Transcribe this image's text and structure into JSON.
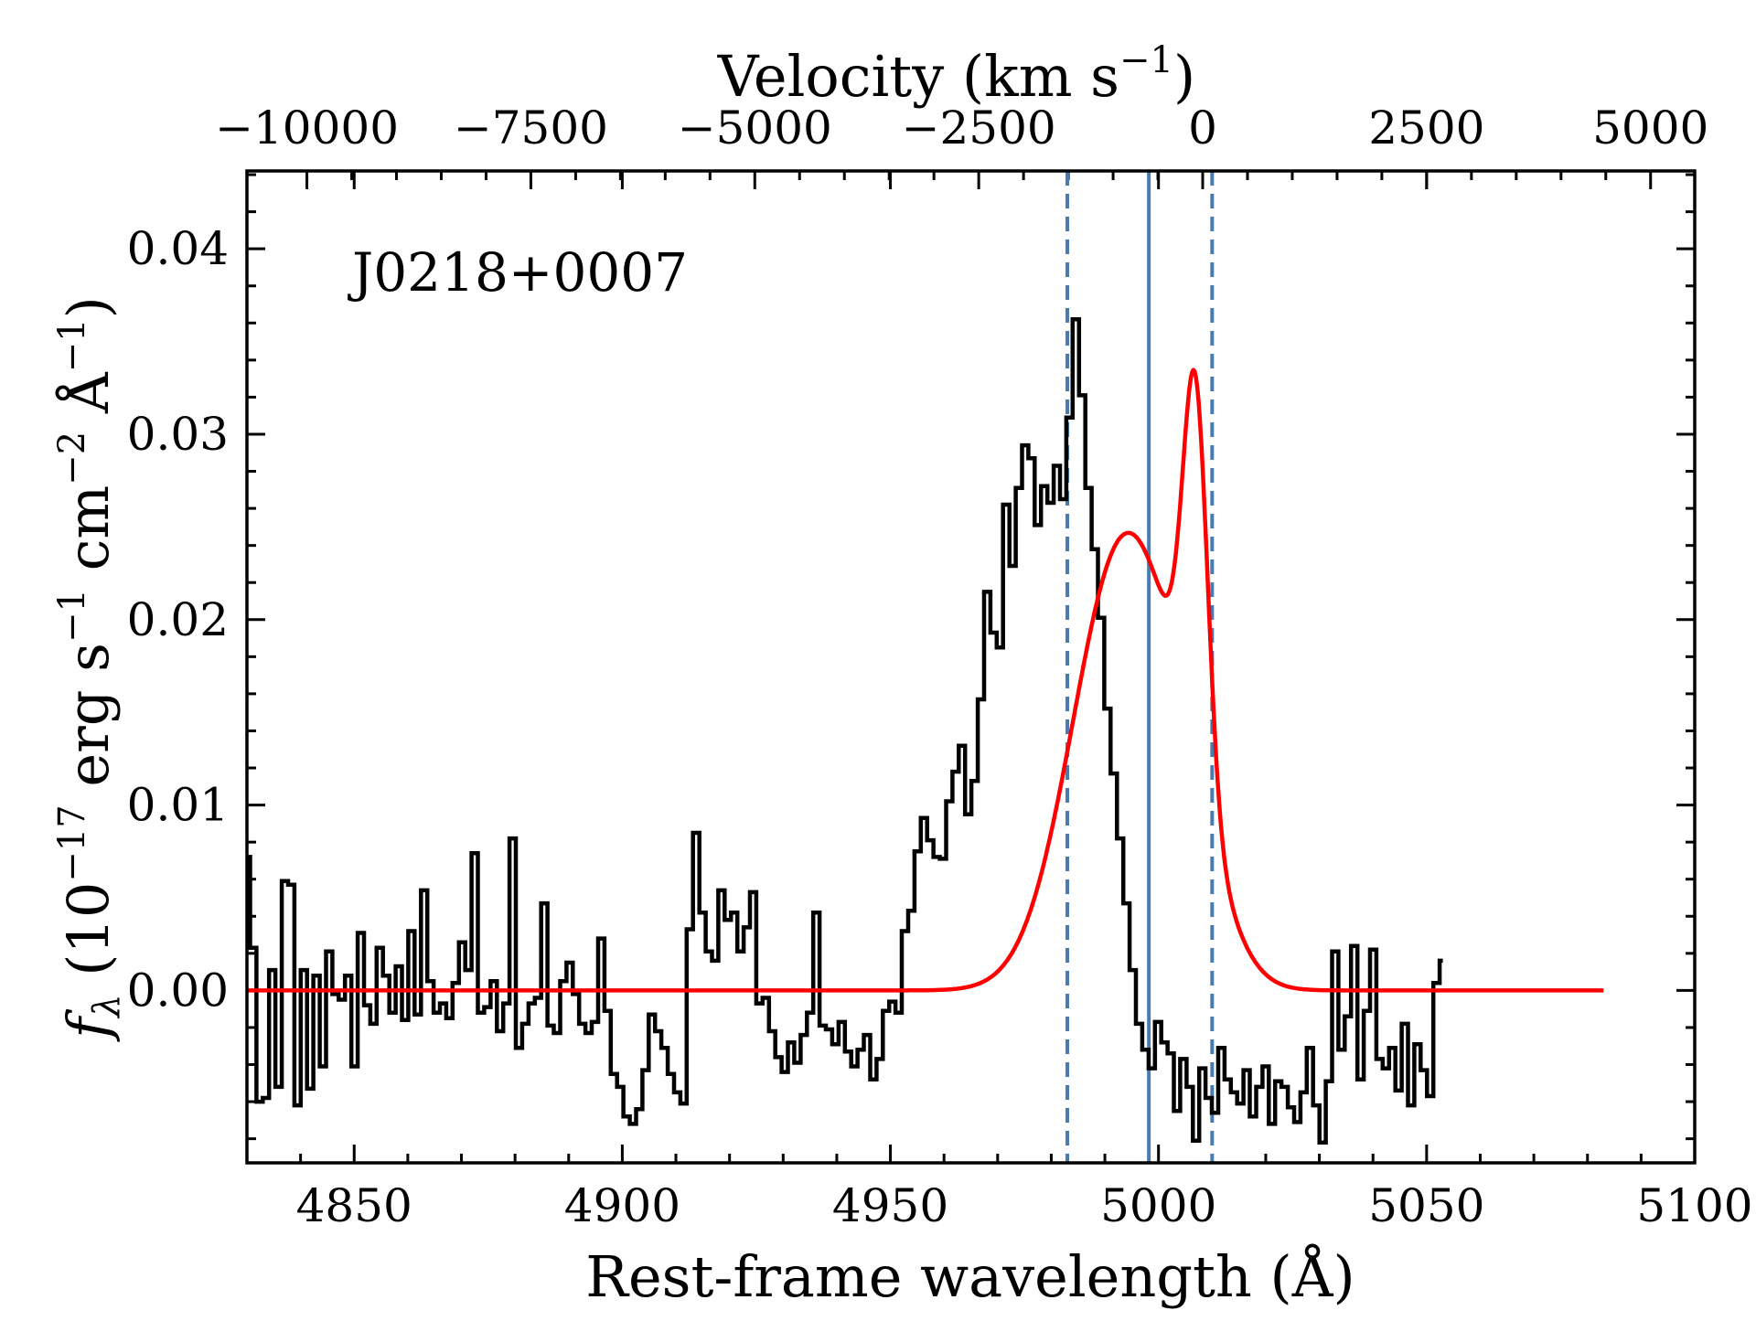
{
  "chart_data": {
    "type": "line",
    "annotation": "J0218+0007",
    "xlabel": "Rest-frame wavelength (Å)",
    "ylabel_parts": {
      "symbol": "f",
      "symbol_sub": "λ",
      "open": " (10",
      "exp1": "−17",
      "mid1": " erg s",
      "exp2": "−1",
      "mid2": " cm",
      "exp3": "−2",
      "mid3": " Å",
      "exp4": "−1",
      "close": ")"
    },
    "top_xlabel_parts": {
      "text": "Velocity (km s",
      "exp": "−1",
      "close": ")"
    },
    "xlim": [
      4830,
      5100
    ],
    "ylim": [
      -0.0093,
      0.0442
    ],
    "x_ticks": [
      4850,
      4900,
      4950,
      5000,
      5050,
      5100
    ],
    "x_tick_labels": [
      "4850",
      "4900",
      "4950",
      "5000",
      "5050",
      "5100"
    ],
    "y_ticks": [
      0.0,
      0.01,
      0.02,
      0.03,
      0.04
    ],
    "y_tick_labels": [
      "0.00",
      "0.01",
      "0.02",
      "0.03",
      "0.04"
    ],
    "top_axis": {
      "ref_wavelength": 5008.24,
      "ticks": [
        -10000,
        -7500,
        -5000,
        -2500,
        0,
        2500,
        5000
      ],
      "tick_labels": [
        "−10000",
        "−7500",
        "−5000",
        "−2500",
        "0",
        "2500",
        "5000"
      ]
    },
    "vlines": [
      {
        "x": 4998.2,
        "style": "solid",
        "color": "#4a7bb0"
      },
      {
        "x": 4983.0,
        "style": "dashed",
        "color": "#4a7bb0"
      },
      {
        "x": 5010.0,
        "style": "dashed",
        "color": "#4a7bb0"
      }
    ],
    "series": [
      {
        "name": "observed spectrum",
        "drawstyle": "steps-mid",
        "color": "#000000",
        "x_start": 4830.0,
        "x_step": 1.18,
        "values": [
          0.0072,
          0.0023,
          -0.006,
          -0.0058,
          0.0011,
          -0.0052,
          0.0059,
          0.0057,
          -0.0062,
          0.0011,
          -0.0053,
          0.0008,
          -0.0041,
          0.0021,
          -0.0002,
          -0.0005,
          0.0008,
          -0.0041,
          0.0031,
          -0.0008,
          -0.0018,
          0.0023,
          0.0008,
          -0.0012,
          0.0013,
          -0.0016,
          0.0032,
          -0.0013,
          0.0054,
          0.0005,
          -0.0012,
          -0.0007,
          -0.0015,
          0.0004,
          0.0026,
          0.0011,
          0.0074,
          -0.0012,
          -0.0009,
          0.0005,
          -0.0022,
          -0.0007,
          0.0082,
          -0.0031,
          -0.0018,
          -0.0007,
          -0.0004,
          0.0047,
          -0.0019,
          -0.0023,
          0.0005,
          0.0015,
          -0.0002,
          -0.0018,
          -0.0023,
          -0.0017,
          0.0028,
          -0.0011,
          -0.0045,
          -0.0052,
          -0.0068,
          -0.0072,
          -0.0064,
          -0.0043,
          -0.0013,
          -0.0022,
          -0.0031,
          -0.0045,
          -0.0055,
          -0.0061,
          0.0033,
          0.0085,
          0.0042,
          0.0021,
          0.0016,
          0.0054,
          0.0038,
          0.0042,
          0.0021,
          0.0034,
          0.0053,
          -0.0007,
          -0.0004,
          -0.0022,
          -0.0036,
          -0.0044,
          -0.0028,
          -0.0039,
          -0.0024,
          -0.0012,
          0.0042,
          -0.0019,
          -0.0021,
          -0.0029,
          -0.0017,
          -0.0033,
          -0.0041,
          -0.0032,
          -0.0024,
          -0.0048,
          -0.0037,
          -0.0011,
          -0.0006,
          -0.0012,
          0.0032,
          0.0043,
          0.0075,
          0.0093,
          0.0081,
          0.0072,
          0.0071,
          0.0102,
          0.0118,
          0.0132,
          0.0095,
          0.0113,
          0.0157,
          0.0215,
          0.0193,
          0.0185,
          0.0262,
          0.0229,
          0.0271,
          0.0294,
          0.0287,
          0.0251,
          0.0272,
          0.0263,
          0.0283,
          0.0265,
          0.0309,
          0.0362,
          0.0321,
          0.0271,
          0.0238,
          0.0201,
          0.0152,
          0.0117,
          0.0082,
          0.0047,
          0.0011,
          -0.0018,
          -0.0032,
          -0.0042,
          -0.0017,
          -0.0028,
          -0.0034,
          -0.0065,
          -0.0037,
          -0.0052,
          -0.0081,
          -0.0042,
          -0.0058,
          -0.0066,
          -0.0031,
          -0.0048,
          -0.0055,
          -0.0061,
          -0.0043,
          -0.0068,
          -0.0052,
          -0.0041,
          -0.0072,
          -0.0049,
          -0.0052,
          -0.0063,
          -0.0071,
          -0.0055,
          -0.0031,
          -0.0062,
          -0.0082,
          -0.0049,
          0.0021,
          -0.0032,
          -0.0014,
          0.0024,
          -0.0048,
          -0.0011,
          0.0022,
          -0.0037,
          -0.0042,
          -0.0031,
          -0.0054,
          -0.0018,
          -0.0062,
          -0.0029,
          -0.0043,
          -0.0057,
          0.0004,
          0.0016
        ]
      },
      {
        "name": "model fit",
        "drawstyle": "line",
        "color": "#ff0000",
        "x_range": [
          4830,
          5083
        ],
        "components": [
          {
            "center": 4993.0,
            "amplitude": 0.0232,
            "sigma": 9.2
          },
          {
            "center": 5006.9,
            "amplitude": 0.0205,
            "sigma": 2.3
          },
          {
            "center": 5005.0,
            "amplitude": 0.0055,
            "sigma": 7.0
          }
        ]
      }
    ]
  }
}
